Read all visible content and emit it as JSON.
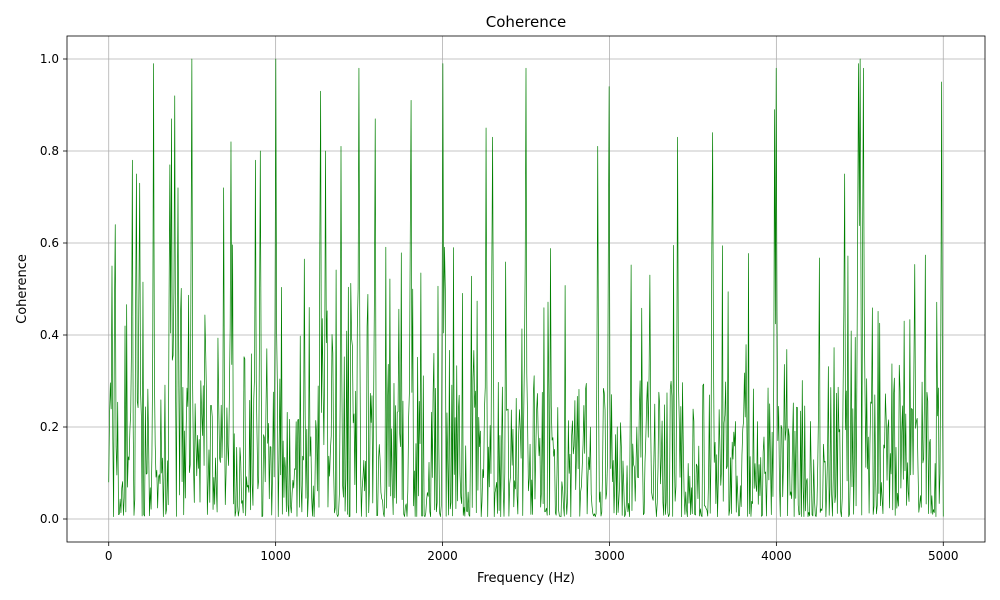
{
  "chart_data": {
    "type": "line",
    "title": "Coherence",
    "xlabel": "Frequency (Hz)",
    "ylabel": "Coherence",
    "xlim": [
      -250,
      5250
    ],
    "ylim": [
      -0.05,
      1.05
    ],
    "xticks": [
      0,
      1000,
      2000,
      3000,
      4000,
      5000
    ],
    "yticks": [
      0.0,
      0.2,
      0.4,
      0.6,
      0.8,
      1.0
    ],
    "xtick_labels": [
      "0",
      "1000",
      "2000",
      "3000",
      "4000",
      "5000"
    ],
    "ytick_labels": [
      "0.0",
      "0.2",
      "0.4",
      "0.6",
      "0.8",
      "1.0"
    ],
    "grid": true,
    "series": [
      {
        "color": "#008000",
        "x_range": [
          0,
          5000
        ],
        "num_points": 1025,
        "peaks": [
          {
            "x": 20,
            "y": 0.55
          },
          {
            "x": 40,
            "y": 0.64
          },
          {
            "x": 140,
            "y": 0.78
          },
          {
            "x": 165,
            "y": 0.75
          },
          {
            "x": 185,
            "y": 0.73
          },
          {
            "x": 270,
            "y": 0.99
          },
          {
            "x": 365,
            "y": 0.77
          },
          {
            "x": 375,
            "y": 0.87
          },
          {
            "x": 395,
            "y": 0.92
          },
          {
            "x": 415,
            "y": 0.72
          },
          {
            "x": 500,
            "y": 1.0
          },
          {
            "x": 690,
            "y": 0.72
          },
          {
            "x": 730,
            "y": 0.82
          },
          {
            "x": 880,
            "y": 0.78
          },
          {
            "x": 910,
            "y": 0.8
          },
          {
            "x": 1000,
            "y": 1.0
          },
          {
            "x": 1270,
            "y": 0.93
          },
          {
            "x": 1300,
            "y": 0.8
          },
          {
            "x": 1390,
            "y": 0.81
          },
          {
            "x": 1500,
            "y": 0.98
          },
          {
            "x": 1595,
            "y": 0.87
          },
          {
            "x": 1810,
            "y": 0.91
          },
          {
            "x": 2000,
            "y": 0.99
          },
          {
            "x": 2260,
            "y": 0.85
          },
          {
            "x": 2300,
            "y": 0.83
          },
          {
            "x": 2500,
            "y": 0.98
          },
          {
            "x": 2930,
            "y": 0.81
          },
          {
            "x": 3000,
            "y": 0.94
          },
          {
            "x": 3410,
            "y": 0.83
          },
          {
            "x": 3620,
            "y": 0.84
          },
          {
            "x": 3990,
            "y": 0.89
          },
          {
            "x": 4000,
            "y": 0.98
          },
          {
            "x": 4410,
            "y": 0.75
          },
          {
            "x": 4490,
            "y": 0.99
          },
          {
            "x": 4500,
            "y": 1.0
          },
          {
            "x": 4520,
            "y": 0.98
          },
          {
            "x": 4990,
            "y": 0.95
          }
        ]
      }
    ]
  }
}
